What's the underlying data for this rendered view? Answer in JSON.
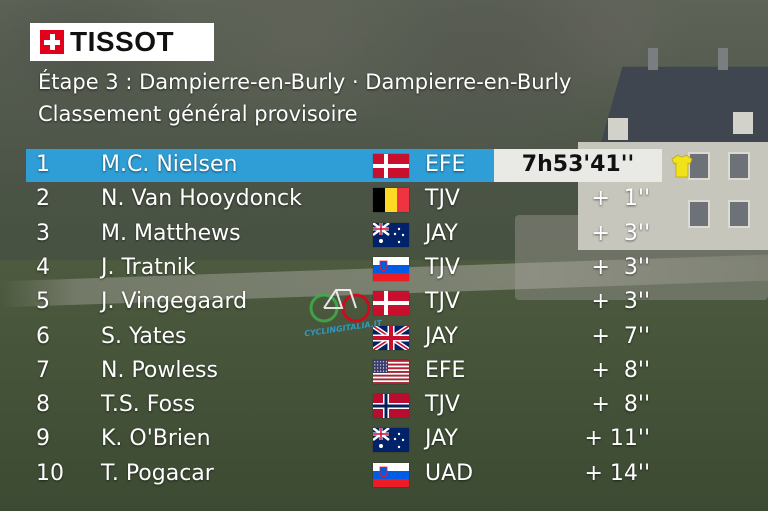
{
  "logo": {
    "brand": "TISSOT",
    "brand_color": "#e2001a"
  },
  "heading": {
    "stage": "Étape 3 : Dampierre-en-Burly · Dampierre-en-Burly",
    "classification": "Classement général provisoire"
  },
  "colors": {
    "leader_band": "#2f9ed6",
    "time_box": "#e9e9e6",
    "yellow_jersey": "#f2e21c"
  },
  "standings": [
    {
      "rank": "1",
      "name": "M.C. Nielsen",
      "flag": "denmark",
      "team": "EFE",
      "time": "7h53'41''",
      "leader": true,
      "jersey": "yellow-jersey-icon"
    },
    {
      "rank": "2",
      "name": "N. Van Hooydonck",
      "flag": "belgium",
      "team": "TJV",
      "time": "+  1''"
    },
    {
      "rank": "3",
      "name": "M. Matthews",
      "flag": "australia",
      "team": "JAY",
      "time": "+  3''"
    },
    {
      "rank": "4",
      "name": "J. Tratnik",
      "flag": "slovenia",
      "team": "TJV",
      "time": "+  3''"
    },
    {
      "rank": "5",
      "name": "J. Vingegaard",
      "flag": "denmark",
      "team": "TJV",
      "time": "+  3''"
    },
    {
      "rank": "6",
      "name": "S. Yates",
      "flag": "uk",
      "team": "JAY",
      "time": "+  7''"
    },
    {
      "rank": "7",
      "name": "N. Powless",
      "flag": "usa",
      "team": "EFE",
      "time": "+  8''"
    },
    {
      "rank": "8",
      "name": "T.S. Foss",
      "flag": "norway",
      "team": "TJV",
      "time": "+  8''"
    },
    {
      "rank": "9",
      "name": "K. O'Brien",
      "flag": "australia",
      "team": "JAY",
      "time": "+ 11''"
    },
    {
      "rank": "10",
      "name": "T. Pogacar",
      "flag": "slovenia",
      "team": "UAD",
      "time": "+ 14''"
    }
  ],
  "watermark": {
    "text": "CYCLINGITALIA.IT"
  }
}
